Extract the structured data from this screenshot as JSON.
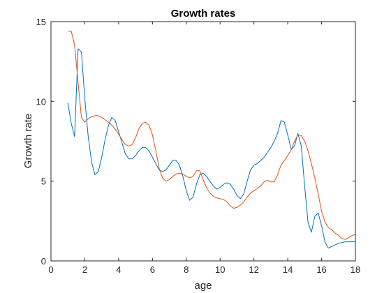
{
  "chart_data": {
    "type": "line",
    "title": "Growth rates",
    "xlabel": "age",
    "ylabel": "Growth rate",
    "xlim": [
      0,
      18
    ],
    "ylim": [
      0,
      15
    ],
    "xticks": [
      0,
      2,
      4,
      6,
      8,
      10,
      12,
      14,
      16,
      18
    ],
    "yticks": [
      0,
      5,
      10,
      15
    ],
    "grid": false,
    "legend": null,
    "series": [
      {
        "color": "#0072BD",
        "x": [
          1.0,
          1.2,
          1.4,
          1.6,
          1.8,
          2.0,
          2.2,
          2.4,
          2.6,
          2.8,
          3.0,
          3.2,
          3.4,
          3.6,
          3.8,
          4.0,
          4.2,
          4.4,
          4.6,
          4.8,
          5.0,
          5.2,
          5.4,
          5.6,
          5.8,
          6.0,
          6.2,
          6.4,
          6.6,
          6.8,
          7.0,
          7.2,
          7.4,
          7.6,
          7.8,
          8.0,
          8.2,
          8.4,
          8.6,
          8.8,
          9.0,
          9.2,
          9.4,
          9.6,
          9.8,
          10.0,
          10.2,
          10.4,
          10.6,
          10.8,
          11.0,
          11.2,
          11.4,
          11.6,
          11.8,
          12.0,
          12.2,
          12.4,
          12.6,
          12.8,
          13.0,
          13.2,
          13.4,
          13.6,
          13.8,
          14.0,
          14.2,
          14.4,
          14.6,
          14.8,
          15.0,
          15.2,
          15.4,
          15.6,
          15.8,
          16.0,
          16.2,
          16.4,
          16.6,
          16.8,
          17.0,
          17.2,
          17.4,
          17.6,
          17.8,
          18.0
        ],
        "y": [
          9.9,
          8.6,
          7.8,
          13.3,
          13.1,
          10.2,
          7.8,
          6.2,
          5.4,
          5.6,
          6.5,
          7.6,
          8.5,
          9.0,
          8.8,
          8.1,
          7.4,
          6.7,
          6.4,
          6.4,
          6.6,
          6.9,
          7.1,
          7.1,
          6.9,
          6.5,
          6.1,
          5.7,
          5.6,
          5.7,
          6.0,
          6.3,
          6.3,
          6.0,
          5.3,
          4.4,
          3.8,
          4.0,
          4.8,
          5.4,
          5.5,
          5.3,
          5.0,
          4.7,
          4.5,
          4.6,
          4.8,
          4.9,
          4.8,
          4.5,
          4.1,
          3.9,
          4.2,
          5.0,
          5.7,
          6.0,
          6.1,
          6.3,
          6.5,
          6.8,
          7.1,
          7.5,
          8.0,
          8.8,
          8.7,
          7.9,
          7.0,
          7.2,
          8.0,
          7.2,
          4.7,
          2.4,
          1.8,
          2.8,
          3.0,
          2.2,
          1.2,
          0.8,
          0.9,
          1.0,
          1.1,
          1.15,
          1.2,
          1.2,
          1.2,
          1.2
        ]
      },
      {
        "color": "#D95319",
        "x": [
          1.0,
          1.2,
          1.4,
          1.6,
          1.8,
          2.0,
          2.2,
          2.4,
          2.6,
          2.8,
          3.0,
          3.2,
          3.4,
          3.6,
          3.8,
          4.0,
          4.2,
          4.4,
          4.6,
          4.8,
          5.0,
          5.2,
          5.4,
          5.6,
          5.8,
          6.0,
          6.2,
          6.4,
          6.6,
          6.8,
          7.0,
          7.2,
          7.4,
          7.6,
          7.8,
          8.0,
          8.2,
          8.4,
          8.6,
          8.8,
          9.0,
          9.2,
          9.4,
          9.6,
          9.8,
          10.0,
          10.2,
          10.4,
          10.6,
          10.8,
          11.0,
          11.2,
          11.4,
          11.6,
          11.8,
          12.0,
          12.2,
          12.4,
          12.6,
          12.8,
          13.0,
          13.2,
          13.4,
          13.6,
          13.8,
          14.0,
          14.2,
          14.4,
          14.6,
          14.8,
          15.0,
          15.2,
          15.4,
          15.6,
          15.8,
          16.0,
          16.2,
          16.4,
          16.6,
          16.8,
          17.0,
          17.2,
          17.4,
          17.6,
          17.8,
          18.0
        ],
        "y": [
          14.4,
          14.4,
          13.5,
          11.2,
          9.0,
          8.7,
          8.9,
          9.05,
          9.1,
          9.1,
          9.0,
          8.85,
          8.7,
          8.5,
          8.25,
          7.95,
          7.6,
          7.3,
          7.2,
          7.3,
          7.7,
          8.3,
          8.6,
          8.7,
          8.5,
          7.9,
          6.9,
          5.8,
          5.2,
          5.0,
          5.1,
          5.3,
          5.45,
          5.5,
          5.45,
          5.3,
          5.2,
          5.3,
          5.65,
          5.65,
          5.1,
          4.6,
          4.25,
          4.05,
          3.95,
          3.9,
          3.85,
          3.7,
          3.45,
          3.3,
          3.35,
          3.5,
          3.7,
          4.0,
          4.25,
          4.4,
          4.55,
          4.7,
          4.95,
          5.05,
          4.95,
          4.95,
          5.4,
          6.0,
          6.3,
          6.6,
          6.95,
          7.5,
          7.9,
          7.85,
          7.5,
          6.9,
          6.1,
          5.2,
          4.2,
          3.1,
          2.45,
          2.1,
          1.95,
          1.75,
          1.6,
          1.4,
          1.35,
          1.45,
          1.6,
          1.65
        ]
      }
    ]
  }
}
